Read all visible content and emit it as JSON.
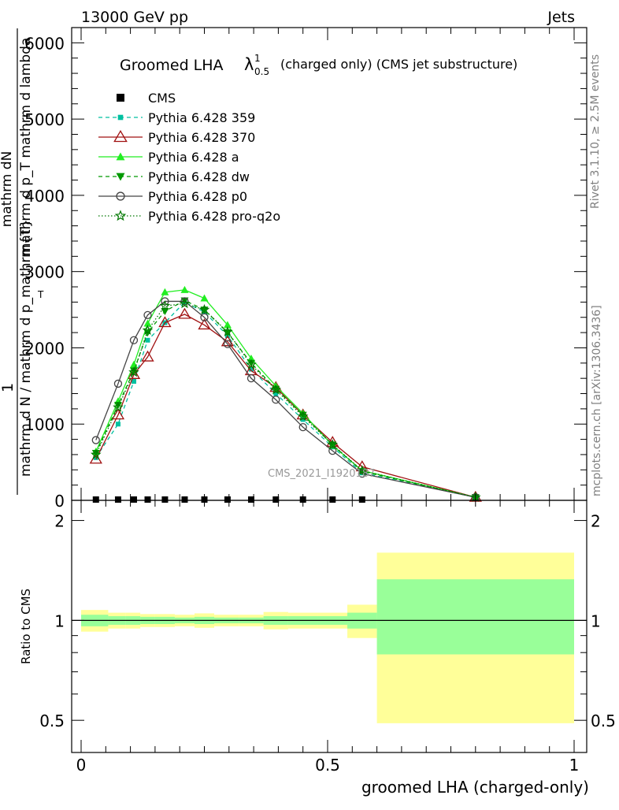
{
  "header": {
    "left": "13000 GeV pp",
    "right": "Jets"
  },
  "side_labels": {
    "rivet": "Rivet 3.1.10, ≥ 2.5M events",
    "mcplots": "mcplots.cern.ch [arXiv:1306.3436]"
  },
  "watermark": "CMS_2021_I1920187",
  "colors": {
    "yellow_band": "#ffff99",
    "green_band": "#99ff99"
  },
  "chart_data": [
    {
      "type": "line",
      "title_main": "Groomed LHA",
      "title_symbol": "λ",
      "title_sup": "1",
      "title_sub": "0.5",
      "title_suffix": "(charged only) (CMS jet substructure)",
      "ylabel_top": "1",
      "ylabel_top2": "mathrm dN",
      "ylabel_top3": "mathrm d p_T mathrm d lambda",
      "ylabel_bottom": "mathrm d N / mathrm d p_mathrm{T}",
      "ylabel_top4": "T",
      "xlim": [
        0,
        1
      ],
      "ylim": [
        0,
        6200
      ],
      "y_ticks": [
        0,
        1000,
        2000,
        3000,
        4000,
        5000,
        6000
      ],
      "y_tick_labels": [
        "0",
        "1000",
        "2000",
        "3000",
        "4000",
        "5000",
        "6000"
      ],
      "cms_x": [
        0.03,
        0.075,
        0.107,
        0.135,
        0.17,
        0.21,
        0.25,
        0.297,
        0.345,
        0.395,
        0.45,
        0.51,
        0.57
      ],
      "cms_y": [
        0,
        0,
        0,
        0,
        0,
        0,
        0,
        0,
        0,
        0,
        0,
        0,
        0
      ],
      "series": [
        {
          "name": "CMS",
          "color": "#000000",
          "marker": "square",
          "line": "none"
        },
        {
          "name": "Pythia 6.428 359",
          "color": "#00c0a0",
          "marker": "square-small",
          "line": "dashed",
          "x": [
            0.03,
            0.075,
            0.107,
            0.135,
            0.17,
            0.21,
            0.25,
            0.297,
            0.345,
            0.395,
            0.45,
            0.51,
            0.57,
            0.8
          ],
          "y": [
            560,
            1000,
            1560,
            2100,
            2330,
            2600,
            2470,
            2160,
            1720,
            1400,
            1060,
            700,
            360,
            40
          ]
        },
        {
          "name": "Pythia 6.428 370",
          "color": "#a01010",
          "marker": "triangle-open",
          "line": "solid",
          "x": [
            0.03,
            0.075,
            0.107,
            0.135,
            0.17,
            0.21,
            0.25,
            0.297,
            0.345,
            0.395,
            0.45,
            0.51,
            0.57,
            0.8
          ],
          "y": [
            540,
            1120,
            1650,
            1880,
            2330,
            2440,
            2300,
            2080,
            1700,
            1480,
            1120,
            760,
            440,
            40
          ]
        },
        {
          "name": "Pythia 6.428 a",
          "color": "#22ee22",
          "marker": "triangle",
          "line": "solid",
          "x": [
            0.03,
            0.075,
            0.107,
            0.135,
            0.17,
            0.21,
            0.25,
            0.297,
            0.345,
            0.395,
            0.45,
            0.51,
            0.57,
            0.8
          ],
          "y": [
            640,
            1300,
            1780,
            2320,
            2730,
            2760,
            2650,
            2300,
            1860,
            1500,
            1140,
            720,
            390,
            40
          ]
        },
        {
          "name": "Pythia 6.428 dw",
          "color": "#009900",
          "marker": "triangle-down",
          "line": "dashed",
          "x": [
            0.03,
            0.075,
            0.107,
            0.135,
            0.17,
            0.21,
            0.25,
            0.297,
            0.345,
            0.395,
            0.45,
            0.51,
            0.57,
            0.8
          ],
          "y": [
            620,
            1250,
            1700,
            2200,
            2480,
            2620,
            2500,
            2200,
            1800,
            1460,
            1120,
            730,
            380,
            40
          ]
        },
        {
          "name": "Pythia 6.428 p0",
          "color": "#444444",
          "marker": "circle-open",
          "line": "solid",
          "x": [
            0.03,
            0.075,
            0.107,
            0.135,
            0.17,
            0.21,
            0.25,
            0.297,
            0.345,
            0.395,
            0.45,
            0.51,
            0.57,
            0.8
          ],
          "y": [
            790,
            1530,
            2100,
            2430,
            2610,
            2610,
            2400,
            2050,
            1600,
            1320,
            960,
            650,
            350,
            40
          ]
        },
        {
          "name": "Pythia 6.428 pro-q2o",
          "color": "#007700",
          "marker": "star",
          "line": "dotted",
          "x": [
            0.03,
            0.075,
            0.107,
            0.135,
            0.17,
            0.21,
            0.25,
            0.297,
            0.345,
            0.395,
            0.45,
            0.51,
            0.57,
            0.8
          ],
          "y": [
            600,
            1220,
            1680,
            2230,
            2550,
            2580,
            2500,
            2210,
            1780,
            1450,
            1100,
            730,
            390,
            40
          ]
        }
      ]
    },
    {
      "type": "area",
      "ylabel": "Ratio to CMS",
      "xlabel": "groomed LHA (charged-only)",
      "xlim": [
        0,
        1
      ],
      "ylim": [
        0.4,
        2.3
      ],
      "x_ticks": [
        0,
        0.5,
        1
      ],
      "x_tick_labels": [
        "0",
        "0.5",
        "1"
      ],
      "y_ticks": [
        0.5,
        1,
        2
      ],
      "y_tick_labels": [
        "0.5",
        "1",
        "2"
      ],
      "bins": [
        {
          "x0": 0.0,
          "x1": 0.055,
          "yellow": [
            0.925,
            1.075
          ],
          "green": [
            0.96,
            1.04
          ]
        },
        {
          "x0": 0.055,
          "x1": 0.09,
          "yellow": [
            0.945,
            1.055
          ],
          "green": [
            0.97,
            1.03
          ]
        },
        {
          "x0": 0.09,
          "x1": 0.12,
          "yellow": [
            0.945,
            1.055
          ],
          "green": [
            0.97,
            1.03
          ]
        },
        {
          "x0": 0.12,
          "x1": 0.15,
          "yellow": [
            0.955,
            1.045
          ],
          "green": [
            0.975,
            1.025
          ]
        },
        {
          "x0": 0.15,
          "x1": 0.19,
          "yellow": [
            0.955,
            1.045
          ],
          "green": [
            0.975,
            1.025
          ]
        },
        {
          "x0": 0.19,
          "x1": 0.23,
          "yellow": [
            0.96,
            1.04
          ],
          "green": [
            0.98,
            1.02
          ]
        },
        {
          "x0": 0.23,
          "x1": 0.27,
          "yellow": [
            0.95,
            1.05
          ],
          "green": [
            0.975,
            1.025
          ]
        },
        {
          "x0": 0.27,
          "x1": 0.32,
          "yellow": [
            0.96,
            1.04
          ],
          "green": [
            0.98,
            1.02
          ]
        },
        {
          "x0": 0.32,
          "x1": 0.37,
          "yellow": [
            0.96,
            1.04
          ],
          "green": [
            0.98,
            1.02
          ]
        },
        {
          "x0": 0.37,
          "x1": 0.42,
          "yellow": [
            0.94,
            1.06
          ],
          "green": [
            0.97,
            1.03
          ]
        },
        {
          "x0": 0.42,
          "x1": 0.48,
          "yellow": [
            0.945,
            1.055
          ],
          "green": [
            0.97,
            1.03
          ]
        },
        {
          "x0": 0.48,
          "x1": 0.54,
          "yellow": [
            0.945,
            1.055
          ],
          "green": [
            0.97,
            1.03
          ]
        },
        {
          "x0": 0.54,
          "x1": 0.6,
          "yellow": [
            0.885,
            1.115
          ],
          "green": [
            0.945,
            1.055
          ]
        },
        {
          "x0": 0.6,
          "x1": 1.0,
          "yellow": [
            0.49,
            1.6
          ],
          "green": [
            0.79,
            1.33
          ]
        }
      ],
      "reference": 1
    }
  ]
}
